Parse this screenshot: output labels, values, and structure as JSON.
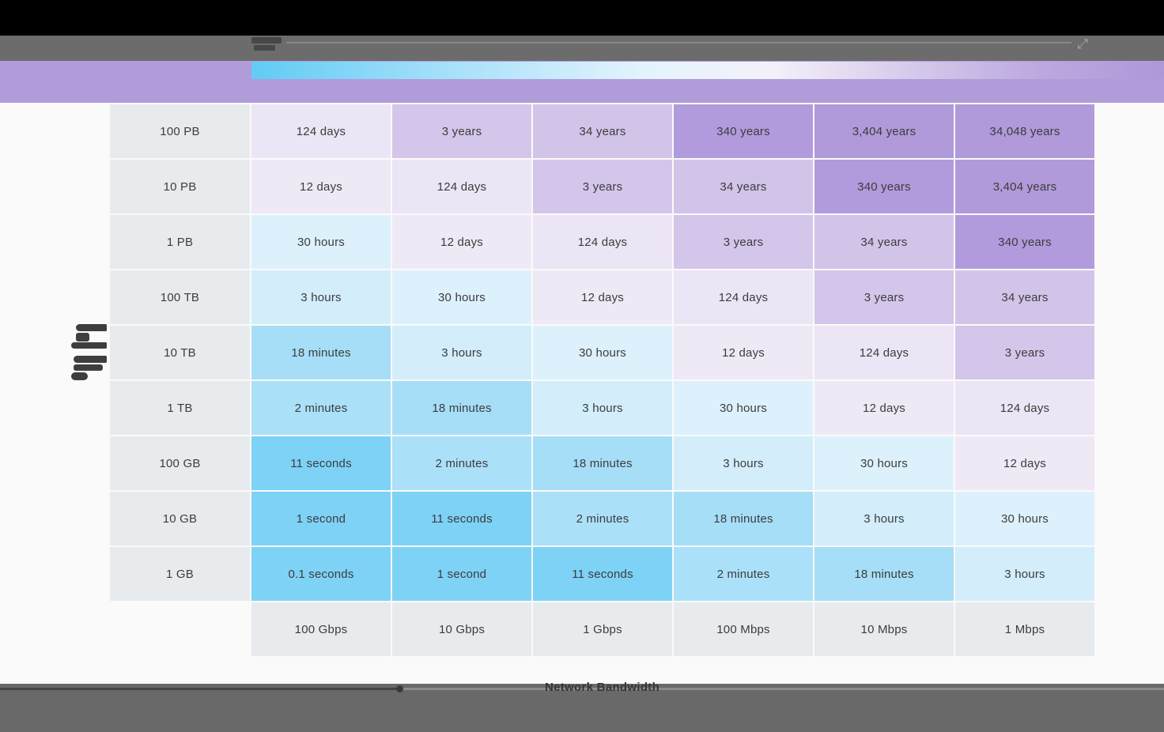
{
  "header": {
    "bar_color": "#B19CDA",
    "legend_gradient_stops": [
      "#60CCF6",
      "#8FD9F8",
      "#BCE7FB",
      "#E3F4FD",
      "#F4F1F9",
      "#D8CDEC",
      "#BCA9E0",
      "#AE98D8"
    ],
    "expand_icon_glyph": "⤢"
  },
  "chart_data": {
    "type": "heatmap",
    "title": "",
    "xlabel": "Network Bandwidth",
    "ylabel": "",
    "x_categories": [
      "100 Gbps",
      "10 Gbps",
      "1 Gbps",
      "100 Mbps",
      "10 Mbps",
      "1 Mbps"
    ],
    "y_categories": [
      "100 PB",
      "10 PB",
      "1 PB",
      "100 TB",
      "10 TB",
      "1 TB",
      "100 GB",
      "10 GB",
      "1 GB"
    ],
    "rows": [
      [
        "124 days",
        "3 years",
        "34 years",
        "340 years",
        "3,404 years",
        "34,048 years"
      ],
      [
        "12 days",
        "124 days",
        "3 years",
        "34 years",
        "340 years",
        "3,404 years"
      ],
      [
        "30 hours",
        "12 days",
        "124 days",
        "3 years",
        "34 years",
        "340 years"
      ],
      [
        "3 hours",
        "30 hours",
        "12 days",
        "124 days",
        "3 years",
        "34 years"
      ],
      [
        "18 minutes",
        "3 hours",
        "30 hours",
        "12 days",
        "124 days",
        "3 years"
      ],
      [
        "2 minutes",
        "18 minutes",
        "3 hours",
        "30 hours",
        "12 days",
        "124 days"
      ],
      [
        "11 seconds",
        "2 minutes",
        "18 minutes",
        "3 hours",
        "30 hours",
        "12 days"
      ],
      [
        "1 second",
        "11 seconds",
        "2 minutes",
        "18 minutes",
        "3 hours",
        "30 hours"
      ],
      [
        "0.1 seconds",
        "1 second",
        "11 seconds",
        "2 minutes",
        "18 minutes",
        "3 hours"
      ]
    ],
    "color_map": {
      "0.1 seconds": "#7DD2F6",
      "1 second": "#7DD2F6",
      "11 seconds": "#7DD2F6",
      "2 minutes": "#ABE0F9",
      "18 minutes": "#A6DEF8",
      "3 hours": "#D3EDFB",
      "30 hours": "#DDF1FC",
      "12 days": "#EFE9F6",
      "124 days": "#ECE5F5",
      "3 years": "#D4C6EA",
      "34 years": "#D2C4E9",
      "340 years": "#B29BDC",
      "3,404 years": "#B09ADA",
      "34,048 years": "#B09ADA"
    },
    "header_cell_color": "#E8EBEE",
    "legend_position": "top"
  },
  "player": {
    "progress_percent": 34.3
  }
}
